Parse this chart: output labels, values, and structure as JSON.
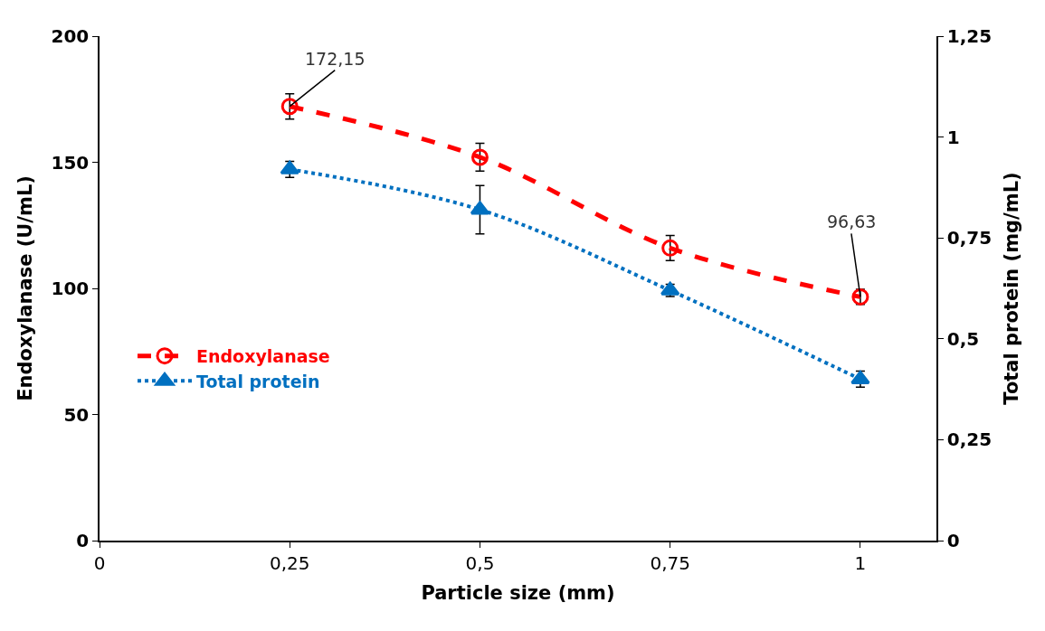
{
  "chart_data": {
    "type": "line",
    "xlabel": "Particle size (mm)",
    "ylabel": "Endoxylanase (U/mL)",
    "y2label": "Total protein (mg/mL)",
    "x": [
      0.25,
      0.5,
      0.75,
      1
    ],
    "xlim": [
      0,
      1.1
    ],
    "xticks": [
      0,
      {
        "value": 0.25,
        "label": "0,25"
      },
      {
        "value": 0.5,
        "label": "0,5"
      },
      {
        "value": 0.75,
        "label": "0,75"
      },
      1
    ],
    "ylim": [
      0,
      200
    ],
    "yticks": [
      0,
      50,
      100,
      150,
      200
    ],
    "y2lim": [
      0,
      1.25
    ],
    "y2ticks": [
      0,
      {
        "value": 0.25,
        "label": "0,25"
      },
      {
        "value": 0.5,
        "label": "0,5"
      },
      {
        "value": 0.75,
        "label": "0,75"
      },
      1,
      {
        "value": 1.25,
        "label": "1,25"
      }
    ],
    "series": [
      {
        "name": "Endoxylanase",
        "color": "#ff0000",
        "values": [
          172.15,
          152,
          116,
          96.63
        ],
        "errors": [
          5,
          5.5,
          5,
          3
        ],
        "value_labels": [
          "172,15",
          null,
          null,
          "96,63"
        ],
        "marker": "circle",
        "line_style": "dashed"
      },
      {
        "name": "Total protein",
        "color": "#0070c0",
        "values": [
          0.92,
          0.82,
          0.62,
          0.4
        ],
        "errors": [
          0.02,
          0.06,
          0.015,
          0.02
        ],
        "axis": "y2",
        "marker": "triangle",
        "line_style": "dotted"
      }
    ],
    "legend": "left"
  }
}
